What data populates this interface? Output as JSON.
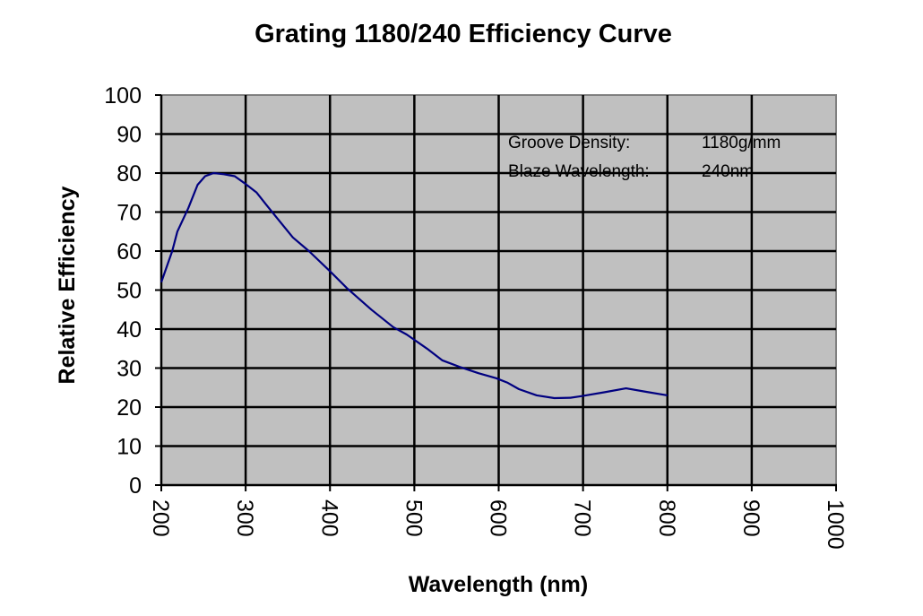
{
  "chart_data": {
    "type": "line",
    "title": "Grating 1180/240 Efficiency Curve",
    "xlabel": "Wavelength (nm)",
    "ylabel": "Relative Efficiency",
    "xlim": [
      200,
      1000
    ],
    "ylim": [
      0,
      100
    ],
    "x_ticks": [
      200,
      300,
      400,
      500,
      600,
      700,
      800,
      900,
      1000
    ],
    "y_ticks": [
      0,
      10,
      20,
      30,
      40,
      50,
      60,
      70,
      80,
      90,
      100
    ],
    "grid": true,
    "plot_background": "#C0C0C0",
    "series": [
      {
        "name": "Efficiency",
        "color": "#000080",
        "x": [
          200,
          213,
          219,
          232,
          243,
          252,
          262,
          274,
          287,
          300,
          313,
          325,
          339,
          356,
          375,
          400,
          420,
          449,
          475,
          491,
          515,
          533,
          555,
          576,
          597,
          610,
          624,
          645,
          666,
          685,
          698,
          725,
          751,
          775,
          800
        ],
        "y": [
          52,
          60,
          65,
          71,
          77,
          79.2,
          80,
          79.7,
          79.2,
          77.2,
          75,
          71.7,
          68,
          63.5,
          60,
          54.8,
          50.5,
          45,
          40.5,
          38.6,
          35,
          32,
          30.2,
          28.7,
          27.4,
          26.3,
          24.6,
          23,
          22.3,
          22.4,
          22.8,
          23.8,
          24.8,
          23.9,
          23
        ]
      }
    ],
    "annotations": [
      {
        "label": "Groove Density:",
        "value": "1180g/mm"
      },
      {
        "label": "Blaze Wavelength:",
        "value": "240nm"
      }
    ]
  }
}
